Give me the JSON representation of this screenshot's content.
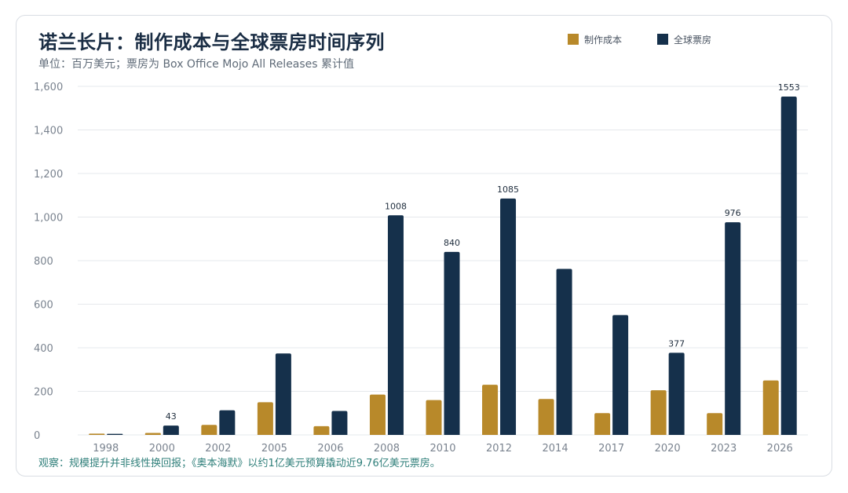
{
  "title": "诺兰长片：制作成本与全球票房时间序列",
  "subtitle": "单位：百万美元；票房为 Box Office Mojo All Releases 累计值",
  "footnote": "观察：规模提升并非线性换回报；《奥本海默》以约1亿美元预算撬动近9.76亿美元票房。",
  "colors": {
    "budget": "#b8892a",
    "gross": "#15304b",
    "grid": "#e6e8ec",
    "tick": "#7a838f",
    "label": "#1f2d3d"
  },
  "chart_data": {
    "type": "bar",
    "categories": [
      "1998",
      "2000",
      "2002",
      "2005",
      "2006",
      "2008",
      "2010",
      "2012",
      "2014",
      "2017",
      "2020",
      "2023",
      "2026"
    ],
    "series": [
      {
        "name": "制作成本",
        "values": [
          6,
          9,
          46,
          150,
          40,
          185,
          160,
          230,
          165,
          100,
          205,
          100,
          250
        ]
      },
      {
        "name": "全球票房",
        "values": [
          5,
          43,
          113,
          374,
          110,
          1008,
          840,
          1085,
          762,
          550,
          377,
          976,
          1553
        ]
      }
    ],
    "data_labels": [
      {
        "series": "全球票房",
        "category": "2000",
        "text": "43"
      },
      {
        "series": "全球票房",
        "category": "2008",
        "text": "1008"
      },
      {
        "series": "全球票房",
        "category": "2010",
        "text": "840"
      },
      {
        "series": "全球票房",
        "category": "2012",
        "text": "1085"
      },
      {
        "series": "全球票房",
        "category": "2020",
        "text": "377"
      },
      {
        "series": "全球票房",
        "category": "2023",
        "text": "976"
      },
      {
        "series": "全球票房",
        "category": "2026",
        "text": "1553"
      }
    ],
    "yticks": [
      0,
      200,
      400,
      600,
      800,
      1000,
      1200,
      1400,
      1600
    ],
    "ytick_labels": [
      "0",
      "200",
      "400",
      "600",
      "800",
      "1,000",
      "1,200",
      "1,400",
      "1,600"
    ],
    "ylim": [
      0,
      1600
    ],
    "grid": true,
    "legend_position": "top-right"
  }
}
